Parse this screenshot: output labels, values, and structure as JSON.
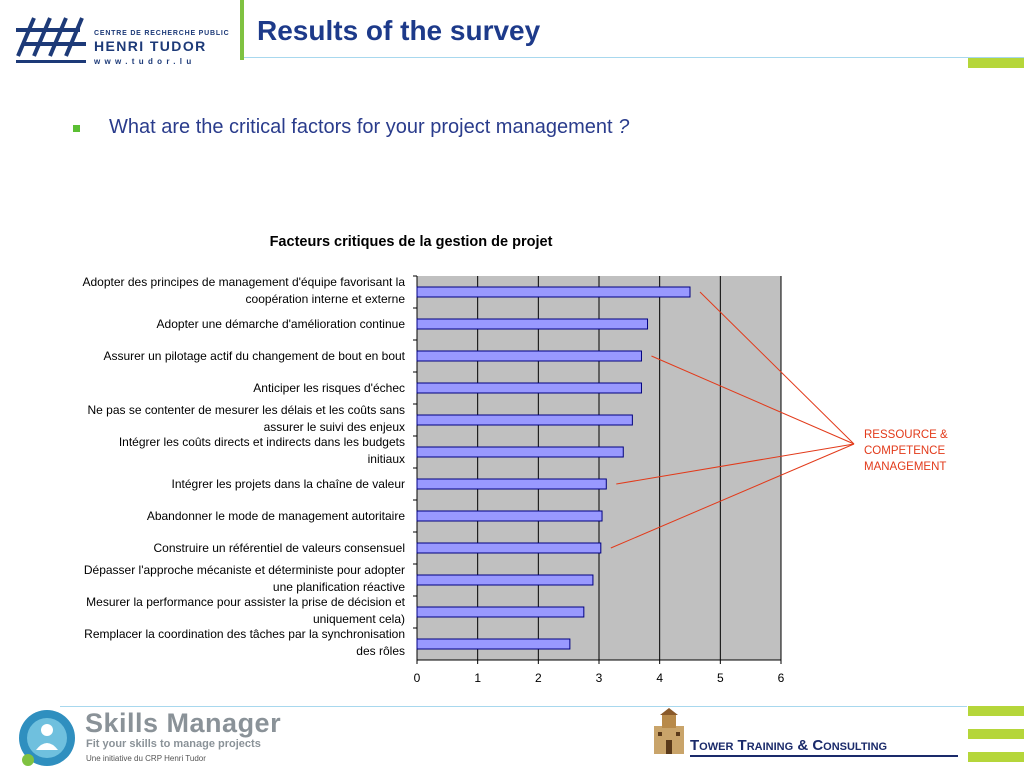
{
  "header": {
    "logo_line1": "CENTRE DE RECHERCHE PUBLIC",
    "logo_line2": "HENRI TUDOR",
    "logo_url": "www.tudor.lu",
    "title": "Results of the survey"
  },
  "bullet": {
    "text": "What are the critical factors for your project management ",
    "question_mark": "?"
  },
  "colors": {
    "title_blue": "#1d3a8a",
    "accent_green": "#b5d63a",
    "bar_fill": "#9999ff",
    "plot_bg": "#c0c0c0",
    "annotation_red": "#e23a1a"
  },
  "chart_data": {
    "type": "bar",
    "orientation": "horizontal",
    "title": "Facteurs critiques de la gestion de projet",
    "categories": [
      [
        "Adopter des principes de management d'équipe favorisant la",
        "coopération interne et externe"
      ],
      [
        "Adopter une démarche d'amélioration continue"
      ],
      [
        "Assurer un pilotage actif du changement de bout en bout"
      ],
      [
        "Anticiper les risques d'échec"
      ],
      [
        "Ne pas se contenter de mesurer les délais et les coûts sans",
        "assurer le suivi des enjeux"
      ],
      [
        "Intégrer les coûts directs et indirects dans les budgets",
        "initiaux"
      ],
      [
        "Intégrer les projets dans la chaîne de valeur"
      ],
      [
        "Abandonner le mode de management autoritaire"
      ],
      [
        "Construire un référentiel de valeurs consensuel"
      ],
      [
        "Dépasser l'approche mécaniste et déterministe pour adopter",
        "une planification réactive"
      ],
      [
        "Mesurer la performance pour assister la prise de décision et",
        "uniquement cela)"
      ],
      [
        "Remplacer la coordination des tâches par la synchronisation",
        "des rôles"
      ]
    ],
    "values": [
      4.5,
      3.8,
      3.7,
      3.7,
      3.55,
      3.4,
      3.12,
      3.05,
      3.03,
      2.9,
      2.75,
      2.52
    ],
    "xlim": [
      0,
      6
    ],
    "xticks": [
      "0",
      "1",
      "2",
      "3",
      "4",
      "5",
      "6"
    ],
    "grid": true,
    "annotation": {
      "lines": [
        "RESSOURCE &",
        "COMPETENCE",
        "MANAGEMENT"
      ],
      "linked_categories": [
        0,
        2,
        6,
        8
      ]
    }
  },
  "footer": {
    "skills_title": "Skills Manager",
    "skills_tagline": "Fit your skills to manage projects",
    "skills_sub": "Une initiative du CRP Henri Tudor",
    "ttc_text": "Tower Training & Consulting"
  }
}
